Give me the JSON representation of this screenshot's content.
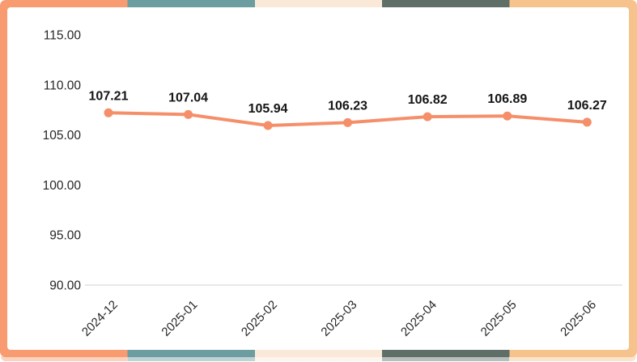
{
  "frame": {
    "segment_colors": [
      "#F89B70",
      "#6C9DA0",
      "#FAE9D8",
      "#5F6F68",
      "#F7C38D"
    ]
  },
  "chart_data": {
    "type": "line",
    "title": "",
    "xlabel": "",
    "ylabel": "",
    "categories": [
      "2024-12",
      "2025-01",
      "2025-02",
      "2025-03",
      "2025-04",
      "2025-05",
      "2025-06"
    ],
    "values": [
      107.21,
      107.04,
      105.94,
      106.23,
      106.82,
      106.89,
      106.27
    ],
    "value_labels": [
      "107.21",
      "107.04",
      "105.94",
      "106.23",
      "106.82",
      "106.89",
      "106.27"
    ],
    "ylim": [
      90,
      115
    ],
    "ytick_values": [
      115,
      110,
      105,
      100,
      95,
      90
    ],
    "ytick_labels": [
      "115.00",
      "110.00",
      "105.00",
      "100.00",
      "95.00",
      "90.00"
    ],
    "grid": false,
    "legend": "none",
    "line_color": "#F58F6A",
    "marker_color": "#F58F6A",
    "axis_line_color": "#D9D9D9",
    "tick_label_color": "#262626",
    "data_label_color": "#151515"
  }
}
